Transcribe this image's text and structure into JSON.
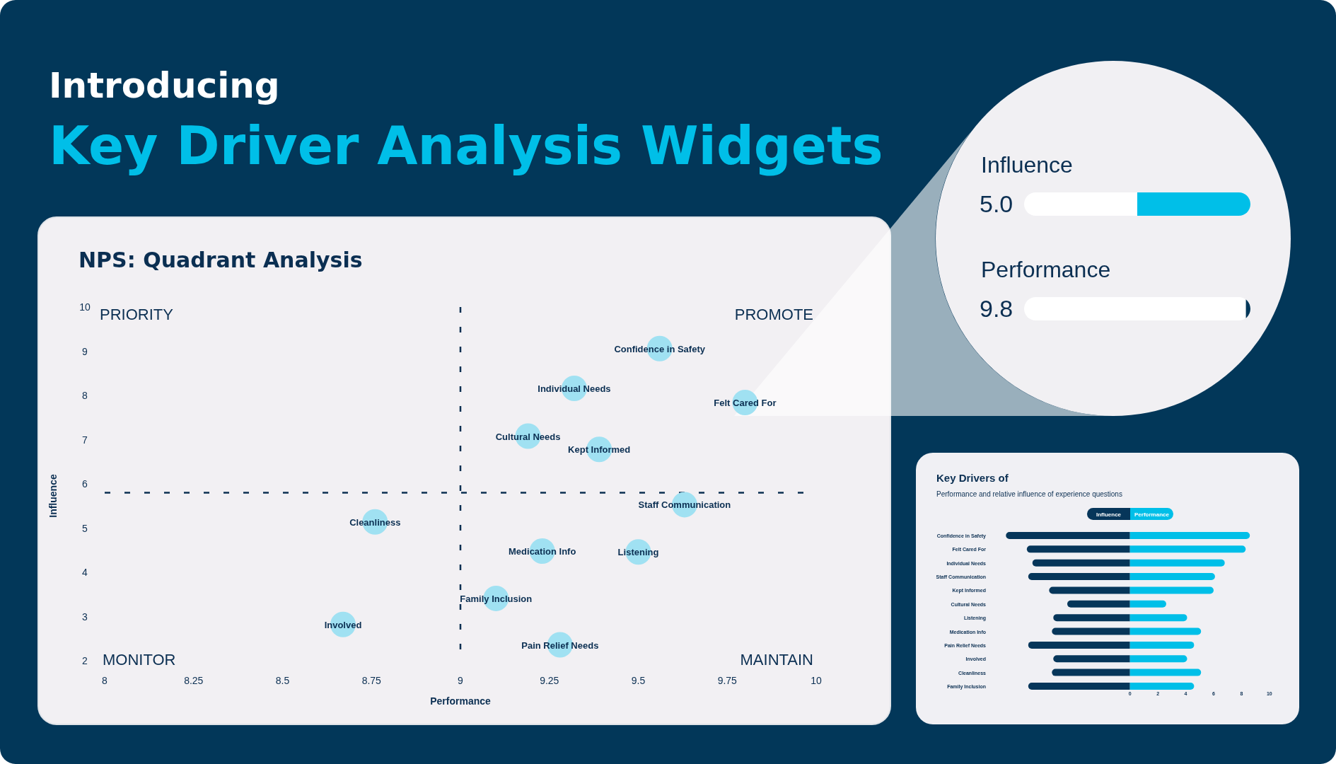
{
  "chart_data": [
    {
      "type": "other",
      "title": "Key Driver Analysis Widgets",
      "annotations": [
        "Introducing"
      ]
    },
    {
      "type": "scatter",
      "title": "NPS: Quadrant Analysis",
      "xlabel": "Performance",
      "ylabel": "Influence",
      "xlim": [
        8,
        10
      ],
      "ylim": [
        2,
        10
      ],
      "xticks": [
        8,
        8.25,
        8.5,
        8.75,
        9,
        9.25,
        9.5,
        9.75,
        10
      ],
      "yticks": [
        2,
        3,
        4,
        5,
        6,
        7,
        8,
        9,
        10
      ],
      "marker": "circle",
      "annotations": [
        "PRIORITY",
        "PROMOTE",
        "MONITOR",
        "MAINTAIN"
      ],
      "ref_lines": [
        {
          "axis": "x",
          "value": 9,
          "color": "#0b2f52",
          "line_style": "dashed"
        },
        {
          "axis": "y",
          "value": 5.8,
          "color": "#0b2f52",
          "line_style": "dashed"
        }
      ],
      "series": [
        {
          "name": "Confidence in Safety",
          "color": "#a0e1f2",
          "x": [
            9.56
          ],
          "values": [
            9.06
          ]
        },
        {
          "name": "Individual Needs",
          "color": "#a0e1f2",
          "x": [
            9.32
          ],
          "values": [
            8.16
          ]
        },
        {
          "name": "Felt Cared For",
          "color": "#a0e1f2",
          "x": [
            9.8
          ],
          "values": [
            7.84
          ]
        },
        {
          "name": "Cultural Needs",
          "color": "#a0e1f2",
          "x": [
            9.19
          ],
          "values": [
            7.08
          ]
        },
        {
          "name": "Kept Informed",
          "color": "#a0e1f2",
          "x": [
            9.39
          ],
          "values": [
            6.78
          ]
        },
        {
          "name": "Staff Communication",
          "color": "#a0e1f2",
          "x": [
            9.63
          ],
          "values": [
            5.53
          ]
        },
        {
          "name": "Cleanliness",
          "color": "#a0e1f2",
          "x": [
            8.76
          ],
          "values": [
            5.14
          ]
        },
        {
          "name": "Medication Info",
          "color": "#a0e1f2",
          "x": [
            9.23
          ],
          "values": [
            4.48
          ]
        },
        {
          "name": "Listening",
          "color": "#a0e1f2",
          "x": [
            9.5
          ],
          "values": [
            4.46
          ]
        },
        {
          "name": "Family Inclusion",
          "color": "#a0e1f2",
          "x": [
            9.1
          ],
          "values": [
            3.41
          ]
        },
        {
          "name": "Involved",
          "color": "#a0e1f2",
          "x": [
            8.67
          ],
          "values": [
            2.82
          ]
        },
        {
          "name": "Pain Relief Needs",
          "color": "#a0e1f2",
          "x": [
            9.28
          ],
          "values": [
            2.36
          ]
        }
      ]
    },
    {
      "type": "bar",
      "orientation": "horizontal",
      "stacked": true,
      "categories": [
        "Influence",
        "Performance"
      ],
      "series": [
        {
          "values": [
            5.0,
            9.8
          ],
          "value_labels": [
            "5.0",
            "9.8"
          ],
          "colors": [
            "#ffffff",
            "#ffffff"
          ]
        },
        {
          "values": [
            5.0,
            0.2
          ],
          "colors": [
            "#00bfe8",
            "#023759"
          ]
        }
      ],
      "xlim": [
        0,
        10
      ],
      "tick_labels": "y"
    },
    {
      "type": "bar",
      "orientation": "horizontal",
      "stacked": true,
      "title": "Key Drivers of",
      "subtitle": "Performance and relative influence of experience questions",
      "categories": [
        "Confidence in Safety",
        "Felt Cared For",
        "Individual Needs",
        "Staff Communication",
        "Kept Informed",
        "Cultural Needs",
        "Listening",
        "Medication Info",
        "Pain Relief Needs",
        "Involved",
        "Cleanliness",
        "Family Inclusion"
      ],
      "series": [
        {
          "name": "Influence",
          "color": "#06365a",
          "values": [
            -8.9,
            -7.4,
            -7.0,
            -7.3,
            -5.8,
            -4.5,
            -5.5,
            -5.6,
            -7.3,
            -5.5,
            -5.6,
            -7.3
          ]
        },
        {
          "name": "Performance",
          "color": "#00bfe8",
          "values": [
            8.6,
            8.3,
            6.8,
            6.1,
            6.0,
            2.6,
            4.1,
            5.1,
            4.6,
            4.1,
            5.1,
            4.6
          ]
        }
      ],
      "xlim": [
        -8.9,
        10
      ],
      "xticks": [
        0,
        2,
        4,
        6,
        8,
        10
      ],
      "legend": "top"
    }
  ]
}
